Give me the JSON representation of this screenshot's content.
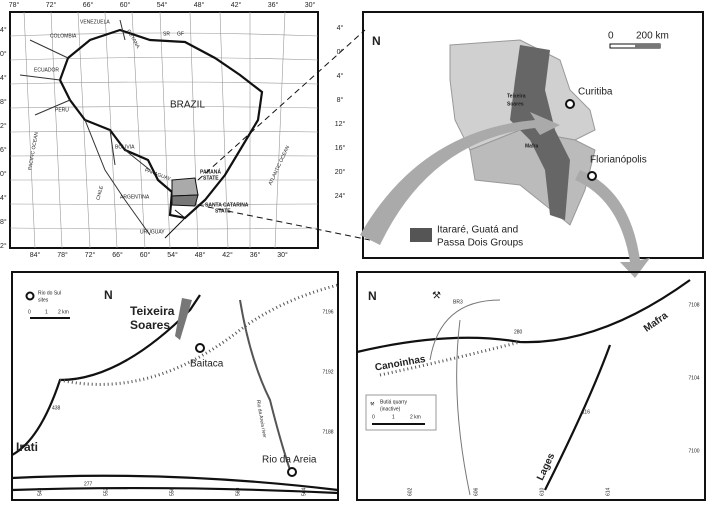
{
  "panel_a": {
    "top_longitudes": [
      "78°",
      "72°",
      "66°",
      "60°",
      "54°",
      "48°",
      "42°",
      "36°",
      "30°"
    ],
    "bottom_longitudes": [
      "84°",
      "78°",
      "72°",
      "66°",
      "60°",
      "54°",
      "48°",
      "42°",
      "36°",
      "30°"
    ],
    "left_latitudes": [
      "4°",
      "0°",
      "4°",
      "8°",
      "2°",
      "6°",
      "0°",
      "4°",
      "8°",
      "2°"
    ],
    "right_latitudes": [
      "4°",
      "0°",
      "4°",
      "8°",
      "12°",
      "16°",
      "20°",
      "24°"
    ],
    "venezuela": "VENEZUELA",
    "colombia": "COLOMBIA",
    "guyana": "GUYANA",
    "suriname": "SR",
    "french_guiana": "GF",
    "ecuador": "ECUADOR",
    "peru": "PERU",
    "brazil": "BRAZIL",
    "bolivia": "BOLIVIA",
    "paraguay": "PARAGUAY",
    "chile": "CHILE",
    "argentina": "ARGENTINA",
    "uruguay": "URUGUAY",
    "pacific": "PACIFIC OCEAN",
    "atlantic": "ATLANTIC OCEAN",
    "parana": [
      "PARANÁ",
      "STATE"
    ],
    "santa_catarina": [
      "SANTA CATARINA",
      "STATE"
    ]
  },
  "panel_b": {
    "north": "N",
    "scale_zero": "0",
    "scale_end": "200 km",
    "curitiba": "Curitiba",
    "teixeira": [
      "Teixeira",
      "Soares"
    ],
    "mafra": "Mafra",
    "florianopolis": "Florianópolis",
    "legend": [
      "Itararé, Guatá and",
      "Passa Dois Groups"
    ]
  },
  "panel_c": {
    "north": "N",
    "legend": [
      "Rio do Sul",
      "sites"
    ],
    "scale": [
      "0",
      "1",
      "2 km"
    ],
    "teixeira": [
      "Teixeira",
      "Soares"
    ],
    "baitaca": "Baitaca",
    "northings": [
      "7196",
      "7192",
      "7188"
    ],
    "river": "Rio da Areia river",
    "road_438": "438",
    "irati": "Irati",
    "road_277": "277",
    "rio_da_areia": "Rio da Areia",
    "eastings": [
      "548",
      "552",
      "556",
      "560",
      "564"
    ]
  },
  "panel_d": {
    "north": "N",
    "br3": "BR3",
    "mafra": "Mafra",
    "northings": [
      "7108",
      "7104",
      "7100"
    ],
    "road_280": "280",
    "canoinhas": "Canoinhas",
    "legend": [
      "Butiá quarry",
      "(inactive)"
    ],
    "scale": [
      "0",
      "1",
      "2 km"
    ],
    "road_116": "116",
    "lages": "Lages",
    "eastings": [
      "602",
      "606",
      "610",
      "614"
    ]
  }
}
